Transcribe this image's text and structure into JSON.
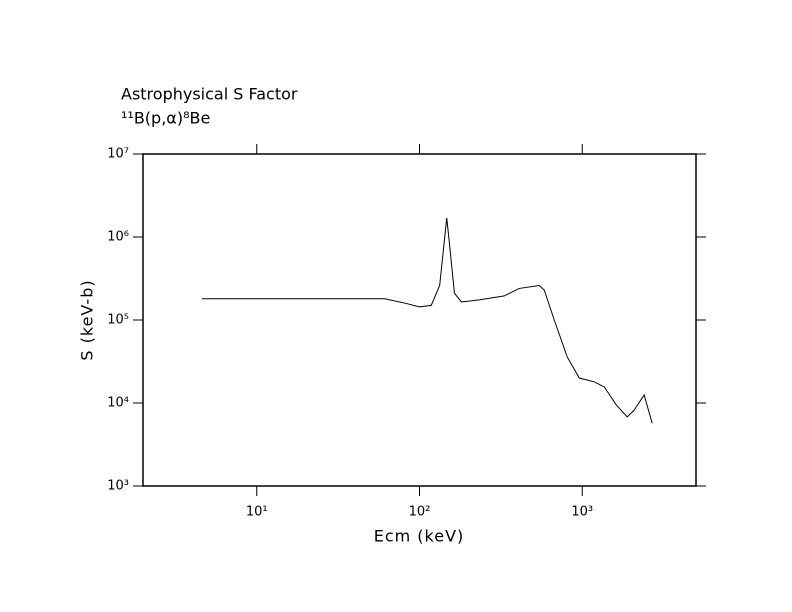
{
  "chart_data": {
    "type": "line",
    "title": "Astrophysical S Factor",
    "subtitle": "¹¹B(p,α)⁸Be",
    "x_label": "Ecm (keV)",
    "y_label": "S (keV-b)",
    "log_x": true,
    "log_y": true,
    "xlim": [
      2,
      5000
    ],
    "ylim": [
      1000,
      10000000
    ],
    "xticks": [
      {
        "value": 10,
        "label": "10¹"
      },
      {
        "value": 100,
        "label": "10²"
      },
      {
        "value": 1000,
        "label": "10³"
      }
    ],
    "yticks": [
      {
        "value": 1000,
        "label": "10³"
      },
      {
        "value": 10000,
        "label": "10⁴"
      },
      {
        "value": 100000,
        "label": "10⁵"
      },
      {
        "value": 1000000,
        "label": "10⁶"
      },
      {
        "value": 10000000,
        "label": "10⁷"
      }
    ],
    "x": [
      4.6,
      61,
      81,
      100,
      118,
      133,
      147,
      152,
      164,
      181,
      233,
      332,
      410,
      544,
      584,
      673,
      808,
      959,
      1185,
      1366,
      1617,
      1889,
      2085,
      2400,
      2690
    ],
    "series": [
      {
        "color": "#000000",
        "values": [
          180000,
          180000,
          160000,
          144000,
          150000,
          260000,
          1700000,
          920000,
          210000,
          165000,
          175000,
          195000,
          240000,
          260000,
          230000,
          100000,
          36000,
          20000,
          18000,
          15600,
          9500,
          6800,
          8200,
          12500,
          5700
        ]
      }
    ]
  }
}
